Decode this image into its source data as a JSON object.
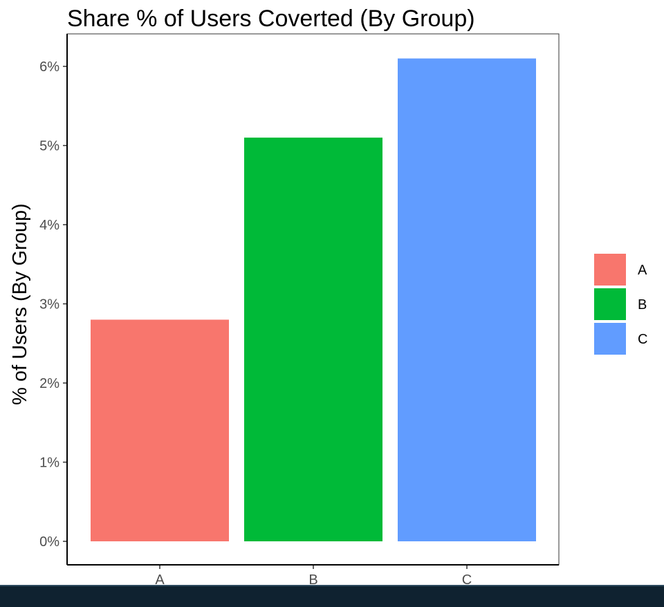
{
  "chart_data": {
    "type": "bar",
    "title": "Share % of Users Coverted (By Group)",
    "xlabel": "",
    "ylabel": "% of Users (By Group)",
    "categories": [
      "A",
      "B",
      "C"
    ],
    "values": [
      2.8,
      5.1,
      6.1
    ],
    "ylim": [
      0,
      6.3
    ],
    "yticks": [
      0,
      1,
      2,
      3,
      4,
      5,
      6
    ],
    "ytick_labels": [
      "0%",
      "1%",
      "2%",
      "3%",
      "4%",
      "5%",
      "6%"
    ],
    "colors": [
      "#F8766D",
      "#00BA38",
      "#619CFF"
    ],
    "grid": false,
    "legend": {
      "position": "right",
      "items": [
        "A",
        "B",
        "C"
      ]
    }
  }
}
